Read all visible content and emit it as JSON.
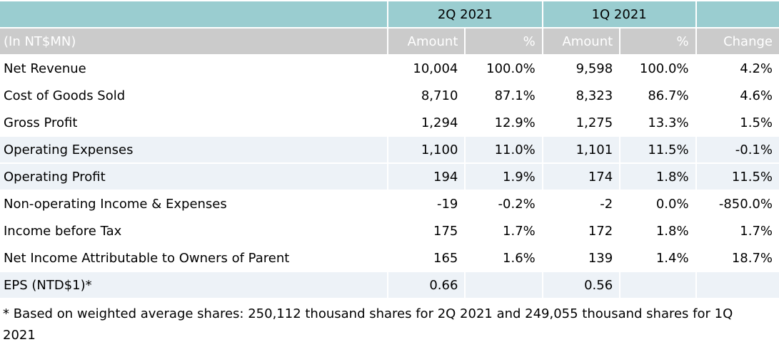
{
  "table": {
    "unit_label": "(In NT$MN)",
    "col_groups": [
      {
        "label": "2Q 2021"
      },
      {
        "label": "1Q 2021"
      }
    ],
    "sub_headers": [
      "Amount",
      "%",
      "Amount",
      "%",
      "Change"
    ],
    "rows": [
      {
        "label": "Net Revenue",
        "values": [
          "10,004",
          "100.0%",
          "9,598",
          "100.0%",
          "4.2%"
        ]
      },
      {
        "label": "Cost of Goods Sold",
        "values": [
          "8,710",
          "87.1%",
          "8,323",
          "86.7%",
          "4.6%"
        ]
      },
      {
        "label": "Gross Profit",
        "values": [
          "1,294",
          "12.9%",
          "1,275",
          "13.3%",
          "1.5%"
        ]
      },
      {
        "label": "Operating Expenses",
        "values": [
          "1,100",
          "11.0%",
          "1,101",
          "11.5%",
          "-0.1%"
        ]
      },
      {
        "label": "Operating Profit",
        "values": [
          "194",
          "1.9%",
          "174",
          "1.8%",
          "11.5%"
        ]
      },
      {
        "label": "Non-operating Income & Expenses",
        "values": [
          "-19",
          "-0.2%",
          "-2",
          "0.0%",
          "-850.0%"
        ]
      },
      {
        "label": "Income before Tax",
        "values": [
          "175",
          "1.7%",
          "172",
          "1.8%",
          "1.7%"
        ]
      },
      {
        "label": "Net Income Attributable to Owners of Parent",
        "values": [
          "165",
          "1.6%",
          "139",
          "1.4%",
          "18.7%"
        ]
      },
      {
        "label": "EPS (NTD$1)*",
        "values": [
          "0.66",
          "",
          "0.56",
          "",
          ""
        ]
      }
    ],
    "footnote": "* Based on weighted average shares: 250,112 thousand shares for 2Q 2021 and 249,055 thousand shares for 1Q 2021"
  },
  "colors": {
    "header_teal": "#9acdd0",
    "header_gray": "#cbcbcb",
    "row_shaded": "#edf2f7",
    "header_text": "#ffffff",
    "body_text": "#000000"
  }
}
